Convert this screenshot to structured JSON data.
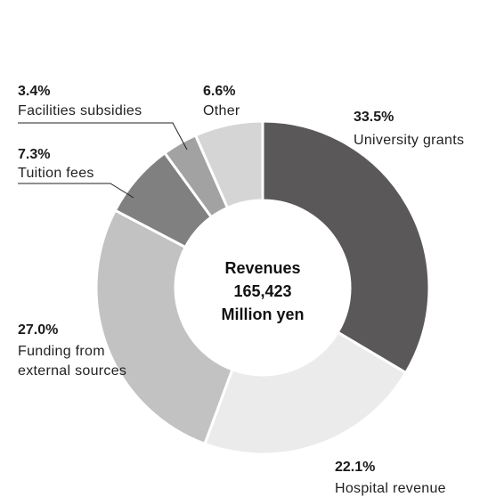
{
  "chart_data": {
    "type": "pie",
    "center_label": [
      "Revenues",
      "165,423",
      "Million yen"
    ],
    "slices": [
      {
        "percent_label": "33.5%",
        "name": "University grants",
        "value": 33.5,
        "color": "#5a5858"
      },
      {
        "percent_label": "22.1%",
        "name": "Hospital revenue",
        "value": 22.1,
        "color": "#ebebeb"
      },
      {
        "percent_label": "27.0%",
        "name": "Funding from external sources",
        "value": 27.0,
        "color": "#c2c2c2"
      },
      {
        "percent_label": "7.3%",
        "name": "Tuition fees",
        "value": 7.3,
        "color": "#808080"
      },
      {
        "percent_label": "3.4%",
        "name": "Facilities subsidies",
        "value": 3.4,
        "color": "#a2a2a2"
      },
      {
        "percent_label": "6.6%",
        "name": "Other",
        "value": 6.6,
        "color": "#d5d5d5"
      }
    ]
  }
}
